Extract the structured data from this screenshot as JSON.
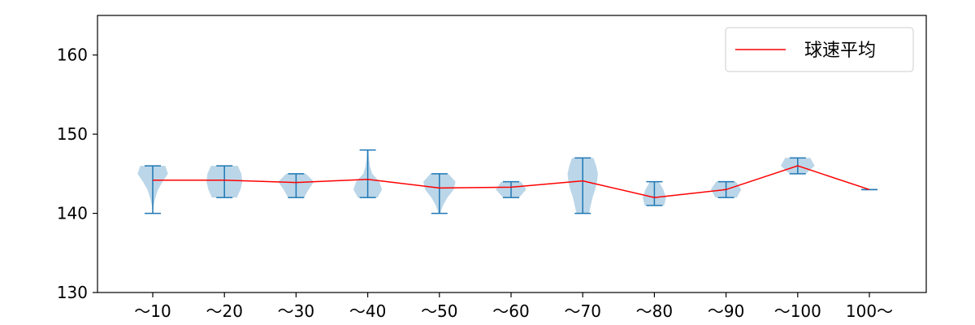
{
  "chart_data": {
    "type": "violin",
    "categories": [
      "～10",
      "～20",
      "～30",
      "～40",
      "～50",
      "～60",
      "～70",
      "～80",
      "～90",
      "～100",
      "100～"
    ],
    "ylim": [
      130,
      165
    ],
    "yticks": [
      130,
      140,
      150,
      160
    ],
    "grid": false,
    "legend": {
      "placement": "top-right",
      "entries": [
        "球速平均"
      ]
    },
    "colors": {
      "violin_fill": "#1f77b4",
      "violin_alpha": "0.3",
      "whisker": "#1f77b4",
      "mean_line": "#ff0000"
    },
    "series": [
      {
        "name": "球速平均",
        "values": [
          144.2,
          144.2,
          143.9,
          144.3,
          143.2,
          143.3,
          144.1,
          142.0,
          143.0,
          146.0,
          143.0
        ]
      }
    ],
    "violins": [
      {
        "min": 140,
        "max": 146,
        "profile": [
          [
            140,
            0.0
          ],
          [
            141,
            0.05
          ],
          [
            142,
            0.15
          ],
          [
            143,
            0.3
          ],
          [
            144,
            0.55
          ],
          [
            145,
            0.85
          ],
          [
            146,
            0.7
          ]
        ]
      },
      {
        "min": 142,
        "max": 146,
        "profile": [
          [
            142,
            0.7
          ],
          [
            143,
            0.9
          ],
          [
            144,
            1.0
          ],
          [
            145,
            0.95
          ],
          [
            146,
            0.75
          ]
        ]
      },
      {
        "min": 142,
        "max": 145,
        "profile": [
          [
            142,
            0.45
          ],
          [
            143,
            0.7
          ],
          [
            144,
            1.0
          ],
          [
            145,
            0.55
          ]
        ]
      },
      {
        "min": 142,
        "max": 148,
        "profile": [
          [
            142,
            0.55
          ],
          [
            143,
            0.8
          ],
          [
            144,
            0.65
          ],
          [
            145,
            0.25
          ],
          [
            146,
            0.12
          ],
          [
            147,
            0.07
          ],
          [
            148,
            0.04
          ]
        ]
      },
      {
        "min": 140,
        "max": 145,
        "profile": [
          [
            140,
            0.05
          ],
          [
            141,
            0.2
          ],
          [
            142,
            0.45
          ],
          [
            143,
            0.8
          ],
          [
            144,
            0.9
          ],
          [
            145,
            0.5
          ]
        ]
      },
      {
        "min": 142,
        "max": 144,
        "profile": [
          [
            142,
            0.45
          ],
          [
            143,
            0.85
          ],
          [
            144,
            0.55
          ]
        ]
      },
      {
        "min": 140,
        "max": 147,
        "profile": [
          [
            140,
            0.35
          ],
          [
            141,
            0.45
          ],
          [
            142,
            0.55
          ],
          [
            143,
            0.7
          ],
          [
            144,
            0.8
          ],
          [
            145,
            0.85
          ],
          [
            146,
            0.75
          ],
          [
            147,
            0.6
          ]
        ]
      },
      {
        "min": 141,
        "max": 144,
        "profile": [
          [
            141,
            0.55
          ],
          [
            142,
            0.65
          ],
          [
            143,
            0.5
          ],
          [
            144,
            0.25
          ]
        ]
      },
      {
        "min": 142,
        "max": 144,
        "profile": [
          [
            142,
            0.6
          ],
          [
            143,
            0.85
          ],
          [
            144,
            0.55
          ]
        ]
      },
      {
        "min": 145,
        "max": 147,
        "profile": [
          [
            145,
            0.45
          ],
          [
            146,
            0.95
          ],
          [
            147,
            0.7
          ]
        ]
      },
      {
        "min": 143,
        "max": 143,
        "profile": [
          [
            143,
            0.0
          ]
        ]
      }
    ]
  }
}
